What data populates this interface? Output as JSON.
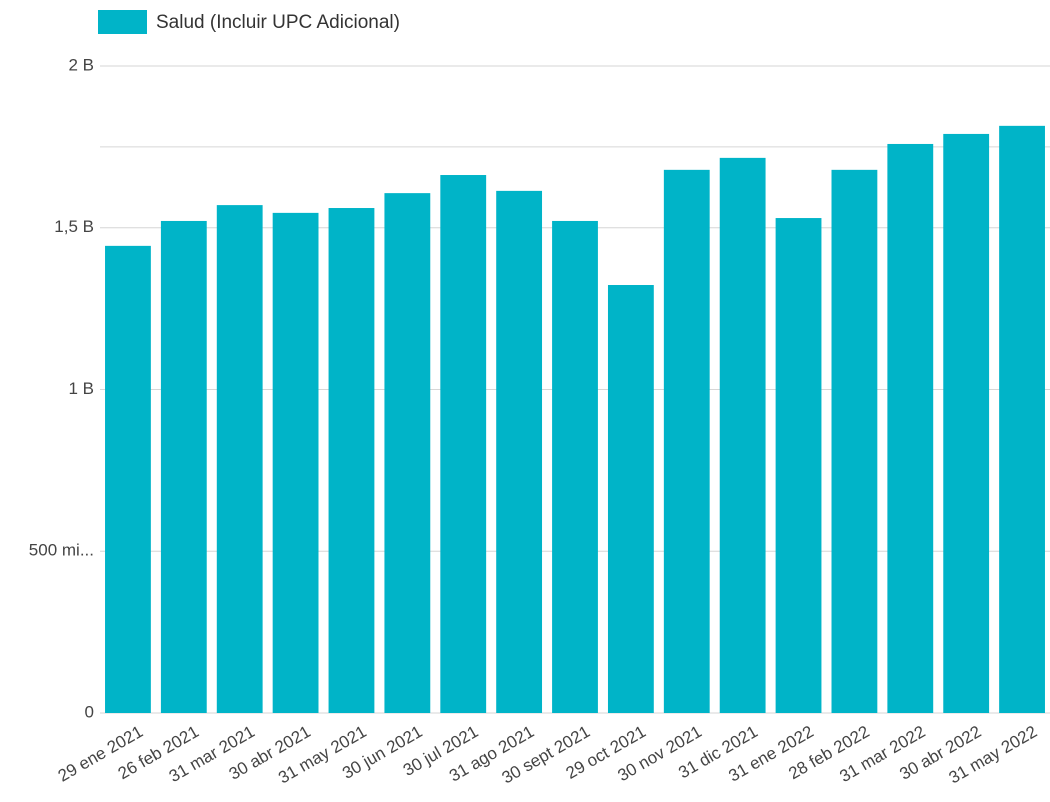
{
  "chart_data": {
    "type": "bar",
    "legend": "Salud (Incluir UPC Adicional)",
    "color": "#00b4c8",
    "categories": [
      "29 ene 2021",
      "26 feb 2021",
      "31 mar 2021",
      "30 abr 2021",
      "31 may 2021",
      "30 jun 2021",
      "30 jul 2021",
      "31 ago 2021",
      "30 sept 2021",
      "29 oct 2021",
      "30 nov 2021",
      "31 dic 2021",
      "31 ene 2022",
      "28 feb 2022",
      "31 mar 2022",
      "30 abr 2022",
      "31 may 2022"
    ],
    "values": [
      1444000000,
      1521000000,
      1570000000,
      1546000000,
      1561000000,
      1607000000,
      1663000000,
      1614000000,
      1521000000,
      1323000000,
      1679000000,
      1716000000,
      1530000000,
      1679000000,
      1759000000,
      1790000000,
      1815000000
    ],
    "ylim": [
      0,
      2000000000
    ],
    "yticks": [
      0,
      {
        "value": 500000000,
        "label": "500 mi..."
      },
      {
        "value": 1000000000,
        "label": "1 B"
      },
      {
        "value": 1500000000,
        "label": "1,5 B"
      },
      {
        "value": 2000000000,
        "label": "2 B"
      }
    ],
    "minor_yticks": [
      1750000000
    ],
    "grid": true
  }
}
